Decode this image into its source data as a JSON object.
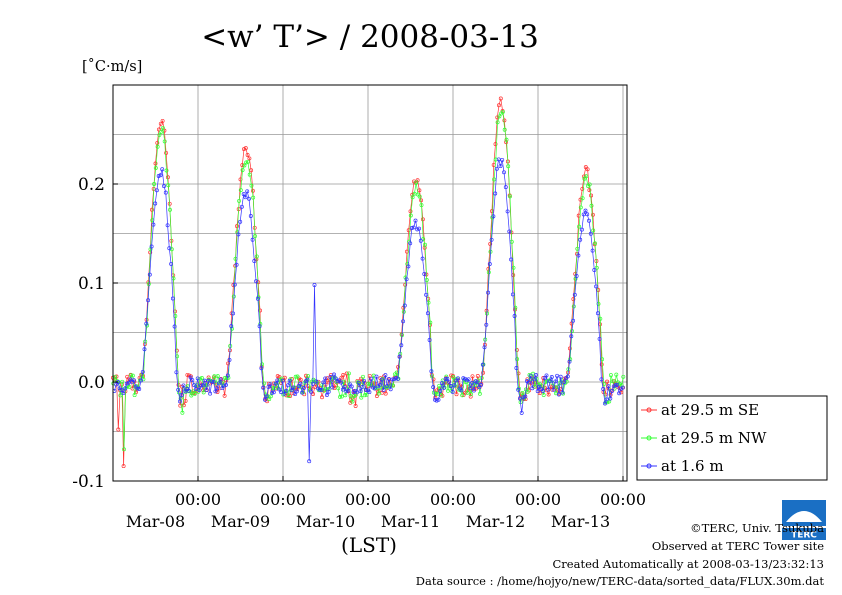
{
  "chart_data": {
    "type": "line",
    "title": "<w’ T’> / 2008-03-13",
    "ylabel": "[˚C·m/s]",
    "xlabel": "(LST)",
    "ylim": [
      -0.1,
      0.3
    ],
    "yticks": [
      {
        "value": -0.1,
        "label": "-0.1"
      },
      {
        "value": 0.0,
        "label": "0.0"
      },
      {
        "value": 0.1,
        "label": "0.1"
      },
      {
        "value": 0.2,
        "label": "0.2"
      }
    ],
    "xlim": [
      0,
      6
    ],
    "xticks": [
      {
        "value": 1,
        "time": "00:00",
        "date": "Mar-08"
      },
      {
        "value": 2,
        "time": "00:00",
        "date": "Mar-09"
      },
      {
        "value": 3,
        "time": "00:00",
        "date": "Mar-10"
      },
      {
        "value": 4,
        "time": "00:00",
        "date": "Mar-11"
      },
      {
        "value": 5,
        "time": "00:00",
        "date": "Mar-12"
      },
      {
        "value": 6,
        "time": "00:00",
        "date": "Mar-13"
      }
    ],
    "grid": true,
    "legend_position": "right",
    "series": [
      {
        "name": "at 29.5 m SE",
        "color": "#ff3333"
      },
      {
        "name": "at 29.5 m NW",
        "color": "#33ff33"
      },
      {
        "name": "at 1.6 m",
        "color": "#3333ff"
      }
    ],
    "days": [
      {
        "start": 0.0,
        "peak": [
          0.262,
          0.236,
          0.0,
          0.202,
          0.278,
          0.212
        ],
        "early": -0.085
      },
      {
        "start": 1.0
      },
      {
        "start": 2.0
      },
      {
        "start": 3.0
      },
      {
        "start": 4.0
      },
      {
        "start": 5.0
      }
    ]
  },
  "footer": {
    "copyright": "©TERC, Univ. Tsukuba",
    "observed": "Observed at TERC Tower site",
    "created": "Created Automatically at 2008-03-13/23:32:13",
    "source": "Data source : /home/hojyo/new/TERC-data/sorted_data/FLUX.30m.dat"
  },
  "logo": {
    "text": "TERC",
    "color": "#1a6fc4"
  }
}
